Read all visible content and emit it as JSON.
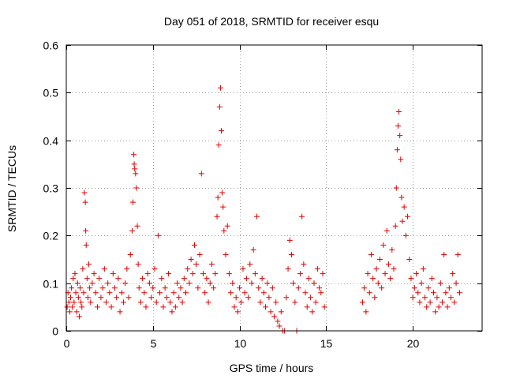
{
  "chart_data": {
    "type": "scatter",
    "title": "Day 051 of 2018, SRMTID for receiver esqu",
    "xlabel": "GPS time / hours",
    "ylabel": "SRMTID / TECUs",
    "xlim": [
      0,
      24
    ],
    "ylim": [
      0,
      0.6
    ],
    "xticks": [
      0,
      5,
      10,
      15,
      20
    ],
    "yticks": [
      0,
      0.1,
      0.2,
      0.3,
      0.4,
      0.5,
      0.6
    ],
    "xtick_labels": [
      "0",
      "5",
      "10",
      "15",
      "20"
    ],
    "ytick_labels": [
      "0",
      "0.1",
      "0.2",
      "0.3",
      "0.4",
      "0.5",
      "0.6"
    ],
    "grid": true,
    "marker": "+",
    "series": [
      {
        "name": "SRMTID",
        "color": "#e00000",
        "points": [
          [
            0.05,
            0.05
          ],
          [
            0.1,
            0.08
          ],
          [
            0.15,
            0.06
          ],
          [
            0.2,
            0.04
          ],
          [
            0.25,
            0.07
          ],
          [
            0.3,
            0.09
          ],
          [
            0.35,
            0.05
          ],
          [
            0.4,
            0.11
          ],
          [
            0.45,
            0.06
          ],
          [
            0.5,
            0.12
          ],
          [
            0.55,
            0.08
          ],
          [
            0.6,
            0.04
          ],
          [
            0.65,
            0.1
          ],
          [
            0.7,
            0.07
          ],
          [
            0.75,
            0.03
          ],
          [
            0.8,
            0.09
          ],
          [
            0.85,
            0.06
          ],
          [
            0.9,
            0.05
          ],
          [
            0.95,
            0.13
          ],
          [
            1.0,
            0.08
          ],
          [
            1.05,
            0.29
          ],
          [
            1.1,
            0.27
          ],
          [
            1.12,
            0.21
          ],
          [
            1.15,
            0.18
          ],
          [
            1.2,
            0.11
          ],
          [
            1.25,
            0.07
          ],
          [
            1.3,
            0.14
          ],
          [
            1.35,
            0.09
          ],
          [
            1.4,
            0.06
          ],
          [
            1.5,
            0.1
          ],
          [
            1.6,
            0.12
          ],
          [
            1.7,
            0.08
          ],
          [
            1.8,
            0.05
          ],
          [
            1.9,
            0.11
          ],
          [
            2.0,
            0.07
          ],
          [
            2.1,
            0.09
          ],
          [
            2.2,
            0.13
          ],
          [
            2.3,
            0.06
          ],
          [
            2.4,
            0.1
          ],
          [
            2.5,
            0.08
          ],
          [
            2.6,
            0.05
          ],
          [
            2.7,
            0.12
          ],
          [
            2.8,
            0.09
          ],
          [
            2.9,
            0.07
          ],
          [
            3.0,
            0.11
          ],
          [
            3.1,
            0.04
          ],
          [
            3.2,
            0.08
          ],
          [
            3.3,
            0.06
          ],
          [
            3.4,
            0.1
          ],
          [
            3.5,
            0.13
          ],
          [
            3.6,
            0.07
          ],
          [
            3.7,
            0.16
          ],
          [
            3.8,
            0.21
          ],
          [
            3.85,
            0.27
          ],
          [
            3.9,
            0.37
          ],
          [
            3.92,
            0.35
          ],
          [
            3.95,
            0.34
          ],
          [
            4.0,
            0.33
          ],
          [
            4.05,
            0.3
          ],
          [
            4.1,
            0.22
          ],
          [
            4.15,
            0.14
          ],
          [
            4.2,
            0.09
          ],
          [
            4.3,
            0.06
          ],
          [
            4.4,
            0.11
          ],
          [
            4.5,
            0.08
          ],
          [
            4.6,
            0.05
          ],
          [
            4.7,
            0.12
          ],
          [
            4.8,
            0.1
          ],
          [
            4.9,
            0.07
          ],
          [
            5.0,
            0.09
          ],
          [
            5.1,
            0.13
          ],
          [
            5.2,
            0.06
          ],
          [
            5.3,
            0.2
          ],
          [
            5.4,
            0.08
          ],
          [
            5.5,
            0.11
          ],
          [
            5.6,
            0.05
          ],
          [
            5.7,
            0.09
          ],
          [
            5.8,
            0.07
          ],
          [
            5.9,
            0.12
          ],
          [
            6.0,
            0.06
          ],
          [
            6.1,
            0.04
          ],
          [
            6.2,
            0.08
          ],
          [
            6.3,
            0.05
          ],
          [
            6.4,
            0.1
          ],
          [
            6.5,
            0.07
          ],
          [
            6.6,
            0.09
          ],
          [
            6.7,
            0.06
          ],
          [
            6.8,
            0.11
          ],
          [
            6.9,
            0.08
          ],
          [
            7.0,
            0.13
          ],
          [
            7.1,
            0.1
          ],
          [
            7.2,
            0.15
          ],
          [
            7.3,
            0.12
          ],
          [
            7.4,
            0.18
          ],
          [
            7.5,
            0.14
          ],
          [
            7.6,
            0.09
          ],
          [
            7.7,
            0.16
          ],
          [
            7.8,
            0.33
          ],
          [
            7.9,
            0.12
          ],
          [
            8.0,
            0.08
          ],
          [
            8.1,
            0.11
          ],
          [
            8.2,
            0.06
          ],
          [
            8.3,
            0.1
          ],
          [
            8.4,
            0.14
          ],
          [
            8.5,
            0.09
          ],
          [
            8.6,
            0.12
          ],
          [
            8.7,
            0.24
          ],
          [
            8.75,
            0.28
          ],
          [
            8.8,
            0.39
          ],
          [
            8.85,
            0.47
          ],
          [
            8.9,
            0.51
          ],
          [
            8.95,
            0.42
          ],
          [
            9.0,
            0.29
          ],
          [
            9.05,
            0.26
          ],
          [
            9.1,
            0.21
          ],
          [
            9.2,
            0.16
          ],
          [
            9.3,
            0.22
          ],
          [
            9.4,
            0.12
          ],
          [
            9.5,
            0.08
          ],
          [
            9.6,
            0.1
          ],
          [
            9.7,
            0.05
          ],
          [
            9.8,
            0.07
          ],
          [
            9.9,
            0.04
          ],
          [
            10.0,
            0.09
          ],
          [
            10.1,
            0.06
          ],
          [
            10.2,
            0.13
          ],
          [
            10.3,
            0.08
          ],
          [
            10.4,
            0.11
          ],
          [
            10.5,
            0.07
          ],
          [
            10.6,
            0.14
          ],
          [
            10.7,
            0.1
          ],
          [
            10.8,
            0.17
          ],
          [
            10.9,
            0.12
          ],
          [
            11.0,
            0.24
          ],
          [
            11.1,
            0.09
          ],
          [
            11.2,
            0.06
          ],
          [
            11.3,
            0.11
          ],
          [
            11.4,
            0.08
          ],
          [
            11.5,
            0.05
          ],
          [
            11.6,
            0.1
          ],
          [
            11.7,
            0.07
          ],
          [
            11.8,
            0.04
          ],
          [
            11.9,
            0.09
          ],
          [
            12.0,
            0.03
          ],
          [
            12.1,
            0.06
          ],
          [
            12.2,
            0.02
          ],
          [
            12.3,
            0.01
          ],
          [
            12.4,
            0.04
          ],
          [
            12.5,
            0.0
          ],
          [
            12.6,
            0.0
          ],
          [
            12.7,
            0.07
          ],
          [
            12.8,
            0.13
          ],
          [
            12.9,
            0.19
          ],
          [
            13.0,
            0.16
          ],
          [
            13.1,
            0.1
          ],
          [
            13.2,
            0.06
          ],
          [
            13.3,
            0.0
          ],
          [
            13.4,
            0.09
          ],
          [
            13.5,
            0.12
          ],
          [
            13.6,
            0.24
          ],
          [
            13.7,
            0.14
          ],
          [
            13.8,
            0.08
          ],
          [
            13.9,
            0.05
          ],
          [
            14.0,
            0.11
          ],
          [
            14.1,
            0.07
          ],
          [
            14.2,
            0.04
          ],
          [
            14.3,
            0.1
          ],
          [
            14.4,
            0.06
          ],
          [
            14.5,
            0.13
          ],
          [
            14.6,
            0.09
          ],
          [
            14.7,
            0.08
          ],
          [
            14.8,
            0.12
          ],
          [
            14.9,
            0.05
          ],
          [
            17.1,
            0.06
          ],
          [
            17.2,
            0.09
          ],
          [
            17.3,
            0.04
          ],
          [
            17.4,
            0.12
          ],
          [
            17.5,
            0.08
          ],
          [
            17.6,
            0.16
          ],
          [
            17.7,
            0.11
          ],
          [
            17.8,
            0.07
          ],
          [
            17.9,
            0.13
          ],
          [
            18.0,
            0.1
          ],
          [
            18.1,
            0.15
          ],
          [
            18.2,
            0.09
          ],
          [
            18.3,
            0.18
          ],
          [
            18.4,
            0.12
          ],
          [
            18.5,
            0.21
          ],
          [
            18.6,
            0.14
          ],
          [
            18.7,
            0.11
          ],
          [
            18.8,
            0.17
          ],
          [
            18.9,
            0.13
          ],
          [
            19.0,
            0.22
          ],
          [
            19.05,
            0.3
          ],
          [
            19.1,
            0.38
          ],
          [
            19.15,
            0.43
          ],
          [
            19.2,
            0.46
          ],
          [
            19.25,
            0.41
          ],
          [
            19.3,
            0.36
          ],
          [
            19.35,
            0.28
          ],
          [
            19.4,
            0.23
          ],
          [
            19.5,
            0.26
          ],
          [
            19.6,
            0.2
          ],
          [
            19.7,
            0.24
          ],
          [
            19.8,
            0.15
          ],
          [
            19.9,
            0.11
          ],
          [
            20.0,
            0.07
          ],
          [
            20.1,
            0.09
          ],
          [
            20.2,
            0.12
          ],
          [
            20.3,
            0.08
          ],
          [
            20.4,
            0.06
          ],
          [
            20.5,
            0.1
          ],
          [
            20.6,
            0.13
          ],
          [
            20.7,
            0.07
          ],
          [
            20.8,
            0.05
          ],
          [
            20.9,
            0.09
          ],
          [
            21.0,
            0.06
          ],
          [
            21.1,
            0.11
          ],
          [
            21.2,
            0.08
          ],
          [
            21.3,
            0.04
          ],
          [
            21.4,
            0.07
          ],
          [
            21.5,
            0.05
          ],
          [
            21.6,
            0.1
          ],
          [
            21.7,
            0.06
          ],
          [
            21.8,
            0.16
          ],
          [
            21.9,
            0.08
          ],
          [
            22.0,
            0.05
          ],
          [
            22.1,
            0.09
          ],
          [
            22.2,
            0.07
          ],
          [
            22.3,
            0.12
          ],
          [
            22.4,
            0.06
          ],
          [
            22.5,
            0.1
          ],
          [
            22.6,
            0.16
          ],
          [
            22.7,
            0.08
          ]
        ]
      }
    ]
  }
}
